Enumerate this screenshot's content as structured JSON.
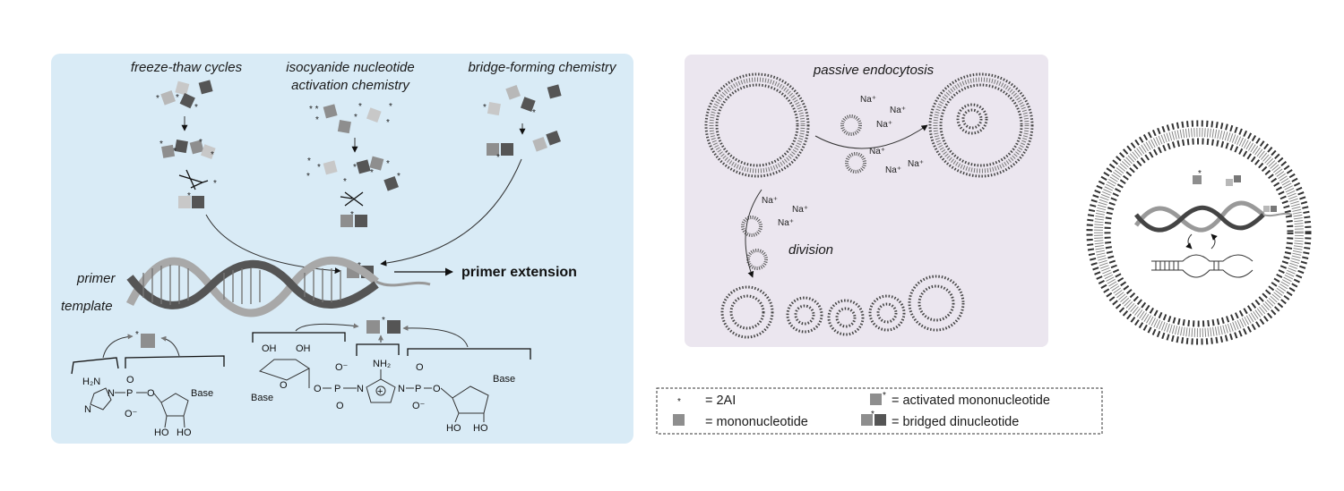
{
  "left_panel": {
    "col1_label": "freeze-thaw cycles",
    "col2_label_line1": "isocyanide nucleotide",
    "col2_label_line2": "activation chemistry",
    "col3_label": "bridge-forming chemistry",
    "primer_label": "primer",
    "template_label": "template",
    "extension_label": "primer extension",
    "chem": {
      "h2n": "H₂N",
      "n": "N",
      "p": "P",
      "o": "O",
      "o_minus": "O⁻",
      "base": "Base",
      "ho": "HO",
      "oh": "OH",
      "nh2": "NH₂",
      "plus": "+"
    }
  },
  "middle_panel": {
    "top_label": "passive endocytosis",
    "division_label": "division",
    "ion": "Na⁺"
  },
  "legend": {
    "star_label": "= 2AI",
    "mono_label": "= mononucleotide",
    "activated_label": "= activated mononucleotide",
    "bridged_label": "= bridged dinucleotide"
  },
  "colors": {
    "left_bg": "#d9ebf6",
    "middle_bg": "#ebe6ef",
    "light_gray": "#b8b8b8",
    "mid_gray": "#8e8e8e",
    "dark_gray": "#555555"
  }
}
